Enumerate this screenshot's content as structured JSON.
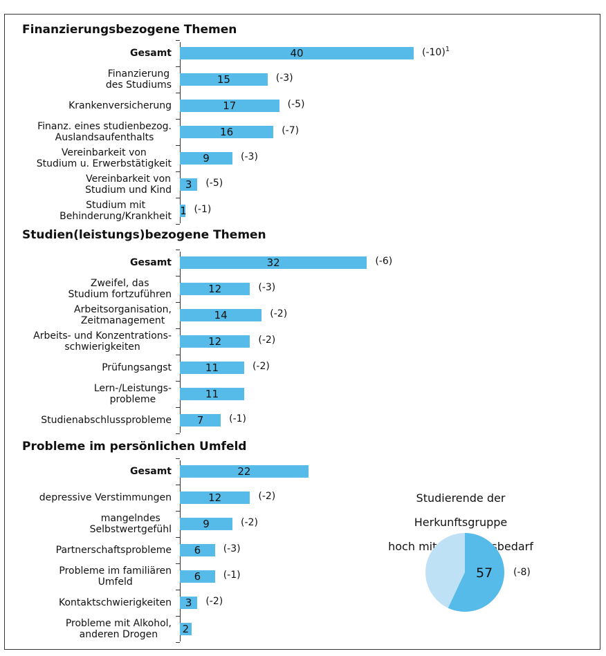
{
  "chart_data": [
    {
      "type": "bar",
      "title": "Finanzierungsbezogene Themen",
      "color": "#56bbe8",
      "categories": [
        "Gesamt",
        "Finanzierung\ndes Studiums",
        "Krankenversicherung",
        "Finanz. eines studienbezog.\nAuslandsaufenthalts",
        "Vereinbarkeit von\nStudium u. Erwerbstätigkeit",
        "Vereinbarkeit von\nStudium und Kind",
        "Studium mit\nBehinderung/Krankheit"
      ],
      "values": [
        40,
        15,
        17,
        16,
        9,
        3,
        1
      ],
      "change_labels": [
        "(-10)",
        "(-3)",
        "(-5)",
        "(-7)",
        "(-3)",
        "(-5)",
        "(-1)"
      ],
      "footnote": "1"
    },
    {
      "type": "bar",
      "title": "Studien(leistungs)bezogene Themen",
      "color": "#56bbe8",
      "categories": [
        "Gesamt",
        "Zweifel, das\nStudium fortzuführen",
        "Arbeitsorganisation,\nZeitmanagement",
        "Arbeits- und Konzentrations-\nschwierigkeiten",
        "Prüfungsangst",
        "Lern-/Leistungs-\nprobleme",
        "Studienabschlussprobleme"
      ],
      "values": [
        32,
        12,
        14,
        12,
        11,
        11,
        7
      ],
      "change_labels": [
        "(-6)",
        "(-3)",
        "(-2)",
        "(-2)",
        "(-2)",
        null,
        "(-1)"
      ]
    },
    {
      "type": "bar",
      "title": "Probleme im persönlichen Umfeld",
      "color": "#56bbe8",
      "categories": [
        "Gesamt",
        "depressive Verstimmungen",
        "mangelndes\nSelbstwertgefühl",
        "Partnerschaftsprobleme",
        "Probleme im familiären\nUmfeld",
        "Kontaktschwierigkeiten",
        "Probleme mit Alkohol,\nanderen Drogen"
      ],
      "values": [
        22,
        12,
        9,
        6,
        6,
        3,
        2
      ],
      "change_labels": [
        null,
        "(-2)",
        "(-2)",
        "(-3)",
        "(-1)",
        "(-2)",
        null
      ]
    },
    {
      "type": "pie",
      "title": "Studierende der Herkunftsgruppe\nhoch mit Beratungsbedarf",
      "values": [
        57
      ],
      "change_labels": [
        "(-8)"
      ],
      "colors": [
        "#56bbe8",
        "#bfe1f6"
      ]
    }
  ]
}
